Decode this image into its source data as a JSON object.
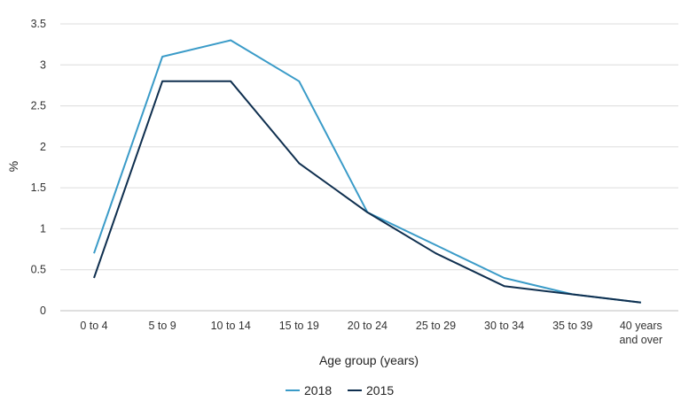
{
  "chart_data": {
    "type": "line",
    "categories": [
      [
        "0 to 4"
      ],
      [
        "5 to 9"
      ],
      [
        "10 to 14"
      ],
      [
        "15 to 19"
      ],
      [
        "20 to 24"
      ],
      [
        "25 to 29"
      ],
      [
        "30 to 34"
      ],
      [
        "35 to 39"
      ],
      [
        "40 years",
        "and over"
      ]
    ],
    "series": [
      {
        "name": "2018",
        "color": "#3a9bc8",
        "values": [
          0.7,
          3.1,
          3.3,
          2.8,
          1.2,
          0.8,
          0.4,
          0.2,
          0.1
        ]
      },
      {
        "name": "2015",
        "color": "#0f2f4f",
        "values": [
          0.4,
          2.8,
          2.8,
          1.8,
          1.2,
          0.7,
          0.3,
          0.2,
          0.1
        ]
      }
    ],
    "xlabel": "Age group (years)",
    "ylabel": "%",
    "ylim": [
      0,
      3.5
    ],
    "yticks": [
      0,
      0.5,
      1,
      1.5,
      2,
      2.5,
      3,
      3.5
    ],
    "ytick_labels": [
      "0",
      "0.5",
      "1",
      "1.5",
      "2",
      "2.5",
      "3",
      "3.5"
    ],
    "grid": true,
    "legend_position": "bottom-center"
  }
}
